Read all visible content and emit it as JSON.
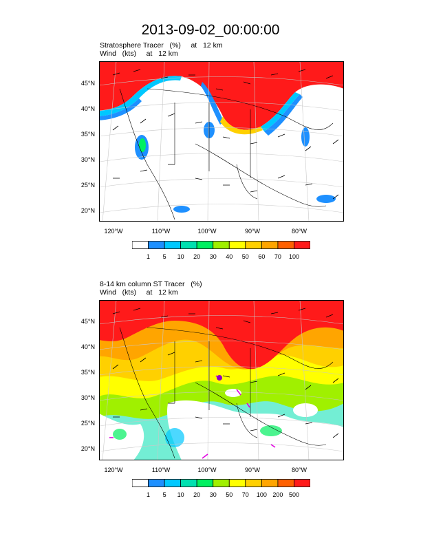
{
  "title": "2013-09-02_00:00:00",
  "panels": [
    {
      "line1": "Stratosphere Tracer   (%)     at   12 km",
      "line2": "Wind   (kts)     at   12 km",
      "lat_labels": [
        "45°N",
        "40°N",
        "35°N",
        "30°N",
        "25°N",
        "20°N"
      ],
      "lon_labels": [
        "120°W",
        "110°W",
        "100°W",
        "90°W",
        "80°W"
      ],
      "colorbar": {
        "labels": [
          "1",
          "5",
          "10",
          "20",
          "30",
          "40",
          "50",
          "60",
          "70",
          "100"
        ],
        "colors": [
          "#ffffff",
          "#1e90ff",
          "#00c8ff",
          "#00e0b0",
          "#00f060",
          "#a0f000",
          "#ffff00",
          "#ffd000",
          "#ffa500",
          "#ff6000",
          "#ff1a1a"
        ]
      }
    },
    {
      "line1": "8-14 km column ST Tracer   (%)",
      "line2": "Wind   (kts)     at   12 km",
      "lat_labels": [
        "45°N",
        "40°N",
        "35°N",
        "30°N",
        "25°N",
        "20°N"
      ],
      "lon_labels": [
        "120°W",
        "110°W",
        "100°W",
        "90°W",
        "80°W"
      ],
      "colorbar": {
        "labels": [
          "1",
          "5",
          "10",
          "20",
          "30",
          "50",
          "70",
          "100",
          "200",
          "500"
        ],
        "colors": [
          "#ffffff",
          "#1e90ff",
          "#00c8ff",
          "#00e0b0",
          "#00f060",
          "#a0f000",
          "#ffff00",
          "#ffd000",
          "#ffa500",
          "#ff6000",
          "#ff1a1a"
        ]
      }
    }
  ]
}
